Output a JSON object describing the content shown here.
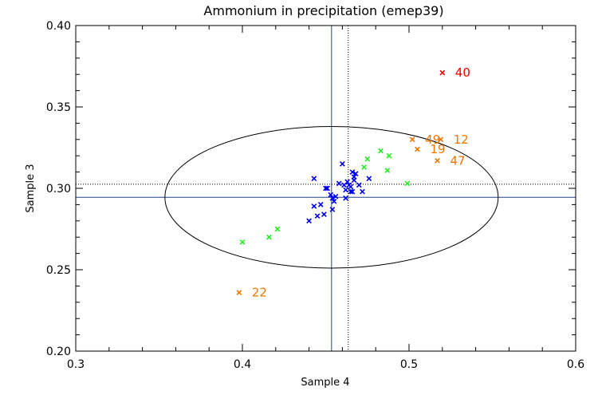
{
  "chart_data": {
    "type": "scatter",
    "title": "Ammonium in precipitation (emep39)",
    "xlabel": "Sample 4",
    "ylabel": "Sample 3",
    "xlim": [
      0.3,
      0.6
    ],
    "ylim": [
      0.2,
      0.4
    ],
    "xticks": [
      0.3,
      0.4,
      0.5,
      0.6
    ],
    "xtick_labels": [
      "0.3",
      "0.4",
      "0.5",
      "0.6"
    ],
    "yticks": [
      0.2,
      0.25,
      0.3,
      0.35,
      0.4
    ],
    "ytick_labels": [
      "0.20",
      "0.25",
      "0.30",
      "0.35",
      "0.40"
    ],
    "grid": false,
    "reference_lines": {
      "consensus_x": 0.4535,
      "consensus_y": 0.2945,
      "median_x": 0.4635,
      "median_y": 0.3025
    },
    "ellipse": {
      "center": [
        0.4535,
        0.2945
      ],
      "half_width_x": 0.1,
      "half_height_y": 0.0435
    },
    "colors": {
      "blue": "#0000ee",
      "green": "#22ee22",
      "orange": "#ee7700",
      "red": "#ee0000",
      "lines": "#224488",
      "ellipse": "#000000"
    },
    "series": [
      {
        "name": "blue",
        "color": "#0000ee",
        "points": [
          [
            0.443,
            0.306
          ],
          [
            0.45,
            0.3
          ],
          [
            0.451,
            0.3
          ],
          [
            0.453,
            0.296
          ],
          [
            0.454,
            0.294
          ],
          [
            0.455,
            0.292
          ],
          [
            0.456,
            0.295
          ],
          [
            0.46,
            0.315
          ],
          [
            0.461,
            0.302
          ],
          [
            0.462,
            0.299
          ],
          [
            0.463,
            0.304
          ],
          [
            0.464,
            0.302
          ],
          [
            0.465,
            0.298
          ],
          [
            0.466,
            0.298
          ],
          [
            0.466,
            0.31
          ],
          [
            0.467,
            0.307
          ],
          [
            0.467,
            0.305
          ],
          [
            0.468,
            0.309
          ],
          [
            0.47,
            0.302
          ],
          [
            0.472,
            0.298
          ],
          [
            0.476,
            0.306
          ],
          [
            0.462,
            0.294
          ],
          [
            0.447,
            0.29
          ],
          [
            0.443,
            0.289
          ],
          [
            0.445,
            0.283
          ],
          [
            0.449,
            0.284
          ],
          [
            0.44,
            0.28
          ],
          [
            0.454,
            0.287
          ],
          [
            0.458,
            0.303
          ],
          [
            0.465,
            0.301
          ]
        ]
      },
      {
        "name": "green",
        "color": "#22ee22",
        "points": [
          [
            0.4,
            0.267
          ],
          [
            0.416,
            0.27
          ],
          [
            0.421,
            0.275
          ],
          [
            0.473,
            0.313
          ],
          [
            0.475,
            0.318
          ],
          [
            0.483,
            0.323
          ],
          [
            0.487,
            0.311
          ],
          [
            0.488,
            0.32
          ],
          [
            0.499,
            0.303
          ]
        ]
      },
      {
        "name": "orange",
        "color": "#ee7700",
        "points": [
          [
            0.398,
            0.236
          ],
          [
            0.502,
            0.33
          ],
          [
            0.505,
            0.324
          ],
          [
            0.517,
            0.317
          ],
          [
            0.519,
            0.33
          ]
        ]
      },
      {
        "name": "red",
        "color": "#ee0000",
        "points": [
          [
            0.52,
            0.371
          ]
        ]
      }
    ],
    "annotations": [
      {
        "text": "22",
        "x": 0.398,
        "y": 0.236,
        "color": "#ee7700"
      },
      {
        "text": "49",
        "x": 0.502,
        "y": 0.33,
        "color": "#ee7700"
      },
      {
        "text": "12",
        "x": 0.519,
        "y": 0.33,
        "color": "#ee7700"
      },
      {
        "text": "19",
        "x": 0.505,
        "y": 0.324,
        "color": "#ee7700"
      },
      {
        "text": "47",
        "x": 0.517,
        "y": 0.317,
        "color": "#ee7700"
      },
      {
        "text": "40",
        "x": 0.52,
        "y": 0.371,
        "color": "#ee0000"
      }
    ]
  }
}
